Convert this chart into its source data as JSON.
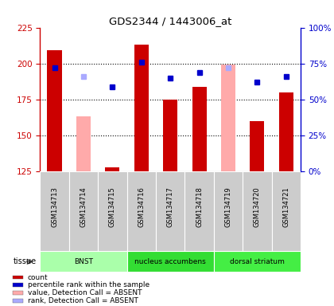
{
  "title": "GDS2344 / 1443006_at",
  "samples": [
    "GSM134713",
    "GSM134714",
    "GSM134715",
    "GSM134716",
    "GSM134717",
    "GSM134718",
    "GSM134719",
    "GSM134720",
    "GSM134721"
  ],
  "tissues": [
    {
      "label": "BNST",
      "start": 0,
      "end": 3,
      "color": "#aaffaa"
    },
    {
      "label": "nucleus accumbens",
      "start": 3,
      "end": 6,
      "color": "#33ee33"
    },
    {
      "label": "dorsal striatum",
      "start": 6,
      "end": 9,
      "color": "#44ff44"
    }
  ],
  "tissue_label": "tissue",
  "count_values": [
    209,
    null,
    128,
    213,
    175,
    184,
    null,
    160,
    180
  ],
  "count_absent_values": [
    null,
    163,
    null,
    null,
    null,
    null,
    199,
    null,
    null
  ],
  "rank_values": [
    197,
    null,
    184,
    201,
    190,
    194,
    null,
    187,
    191
  ],
  "rank_absent_values": [
    null,
    191,
    null,
    null,
    null,
    null,
    197,
    null,
    null
  ],
  "ylim_left": [
    125,
    225
  ],
  "ylim_right": [
    0,
    100
  ],
  "yticks_left": [
    125,
    150,
    175,
    200,
    225
  ],
  "yticks_right": [
    0,
    25,
    50,
    75,
    100
  ],
  "ytick_labels_right": [
    "0%",
    "25%",
    "50%",
    "75%",
    "100%"
  ],
  "left_axis_color": "#cc0000",
  "right_axis_color": "#0000cc",
  "bar_width": 0.5,
  "count_color": "#cc0000",
  "count_absent_color": "#ffaaaa",
  "rank_color": "#0000cc",
  "rank_absent_color": "#aaaaff",
  "grid_linestyle": "dotted",
  "grid_color": "#000000",
  "bg_plot": "#ffffff",
  "bg_sample_labels": "#cccccc",
  "legend_items": [
    {
      "color": "#cc0000",
      "label": "count"
    },
    {
      "color": "#0000cc",
      "label": "percentile rank within the sample"
    },
    {
      "color": "#ffaaaa",
      "label": "value, Detection Call = ABSENT"
    },
    {
      "color": "#aaaaff",
      "label": "rank, Detection Call = ABSENT"
    }
  ]
}
